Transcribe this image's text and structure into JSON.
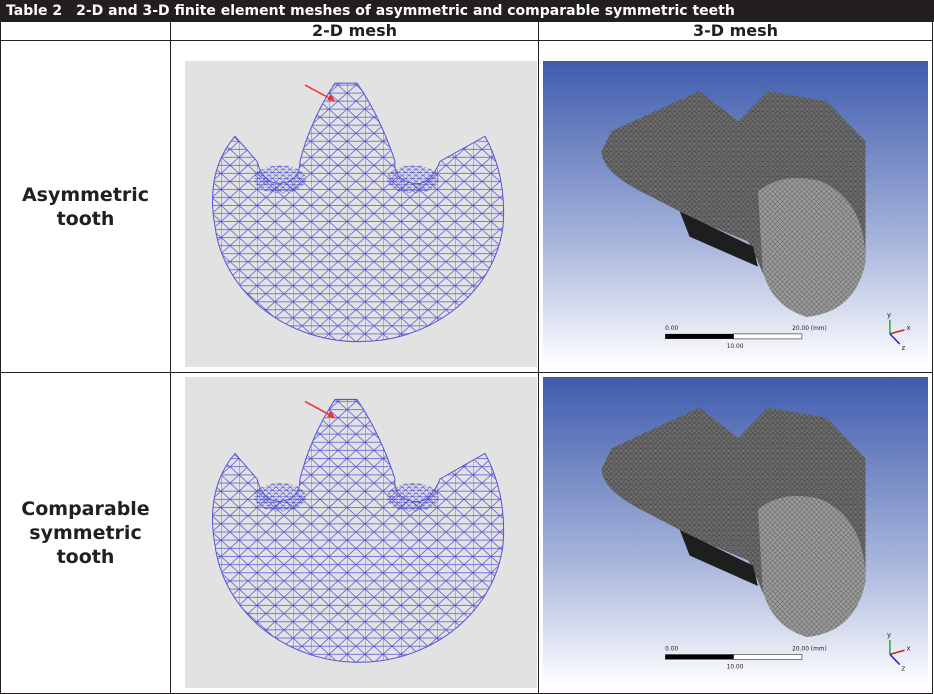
{
  "header": {
    "label": "Table 2",
    "caption": "2-D and 3-D finite element meshes of asymmetric and comparable symmetric teeth"
  },
  "table": {
    "columns": [
      "2-D mesh",
      "3-D mesh"
    ],
    "rows": [
      {
        "label": "Asymmetric tooth",
        "scale": {
          "start": "0.00",
          "end": "20.00 (mm)",
          "mid": "10.00"
        },
        "axes": [
          "y",
          "x",
          "z"
        ]
      },
      {
        "label": "Comparable symmetric tooth",
        "scale": {
          "start": "0.00",
          "end": "20.00 (mm)",
          "mid": "10.00"
        },
        "axes": [
          "y",
          "x",
          "z"
        ]
      }
    ]
  }
}
